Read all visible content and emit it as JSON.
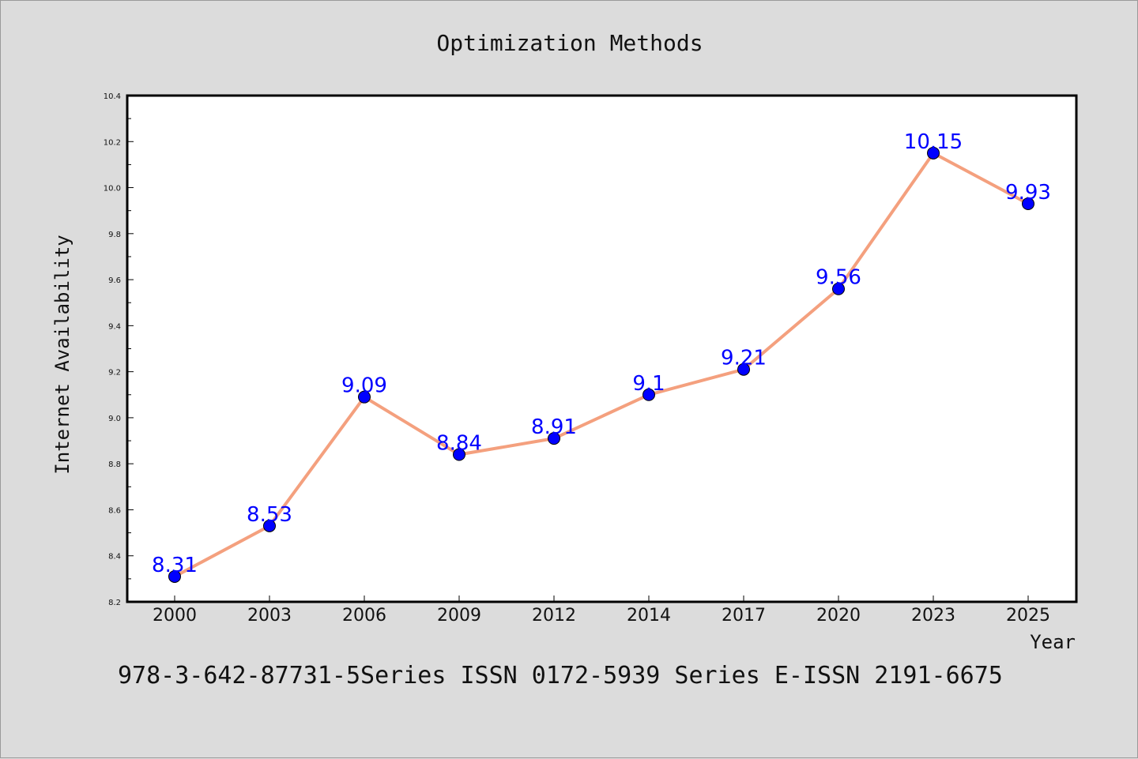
{
  "chart_data": {
    "type": "line",
    "title": "Optimization Methods",
    "xlabel": "Year",
    "ylabel": "Internet Availability",
    "categories": [
      "2000",
      "2003",
      "2006",
      "2009",
      "2012",
      "2014",
      "2017",
      "2020",
      "2023",
      "2025"
    ],
    "series": [
      {
        "values": [
          8.31,
          8.53,
          9.09,
          8.84,
          8.91,
          9.1,
          9.21,
          9.56,
          10.15,
          9.93
        ],
        "labels": [
          "8.31",
          "8.53",
          "9.09",
          "8.84",
          "8.91",
          "9.1",
          "9.21",
          "9.56",
          "10.15",
          "9.93"
        ],
        "line_color": "#f4a07e",
        "marker_color": "#0000ff"
      }
    ],
    "ylim": [
      8.2,
      10.4
    ],
    "yticks": [
      "8.2",
      "8.4",
      "8.6",
      "8.8",
      "9.0",
      "9.2",
      "9.4",
      "9.6",
      "9.8",
      "10.0",
      "10.2",
      "10.4"
    ],
    "grid": false,
    "legend": "none"
  },
  "footer": {
    "text": "978-3-642-87731-5Series ISSN 0172-5939 Series E-ISSN 2191-6675"
  },
  "colors": {
    "background": "#dcdcdc",
    "plot_background": "#ffffff",
    "line": "#f4a07e",
    "marker": "#0000ff",
    "data_label": "#0000ff"
  }
}
